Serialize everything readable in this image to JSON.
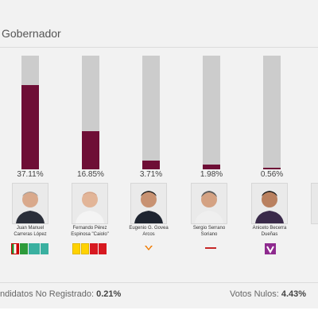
{
  "header": {
    "title": "Gobernador"
  },
  "candidates": [
    {
      "name_line1": "Juan Manuel",
      "name_line2": "Carreras López",
      "percent": "37.11%",
      "share": 0.3711
    },
    {
      "name_line1": "Fernando Pérez",
      "name_line2": "Espinosa \"Caiolo\"",
      "percent": "16.85%",
      "share": 0.1685
    },
    {
      "name_line1": "Eugenio G. Govea",
      "name_line2": "Arcos",
      "percent": "3.71%",
      "share": 0.0371
    },
    {
      "name_line1": "Sergio Serrano",
      "name_line2": "Soriano",
      "percent": "1.98%",
      "share": 0.0198
    },
    {
      "name_line1": "Aniceto Becerra",
      "name_line2": "Dueñas",
      "percent": "0.56%",
      "share": 0.0056
    }
  ],
  "footer": {
    "no_registrados_label": "ndidatos No Registrado:",
    "no_registrados_value": "0.21%",
    "nulos_label": "Votos Nulos:",
    "nulos_value": "4.43%"
  },
  "colors": {
    "bar_fill": "#6e0e36",
    "bar_track": "#cccccc",
    "panel": "#f2f2f2"
  }
}
